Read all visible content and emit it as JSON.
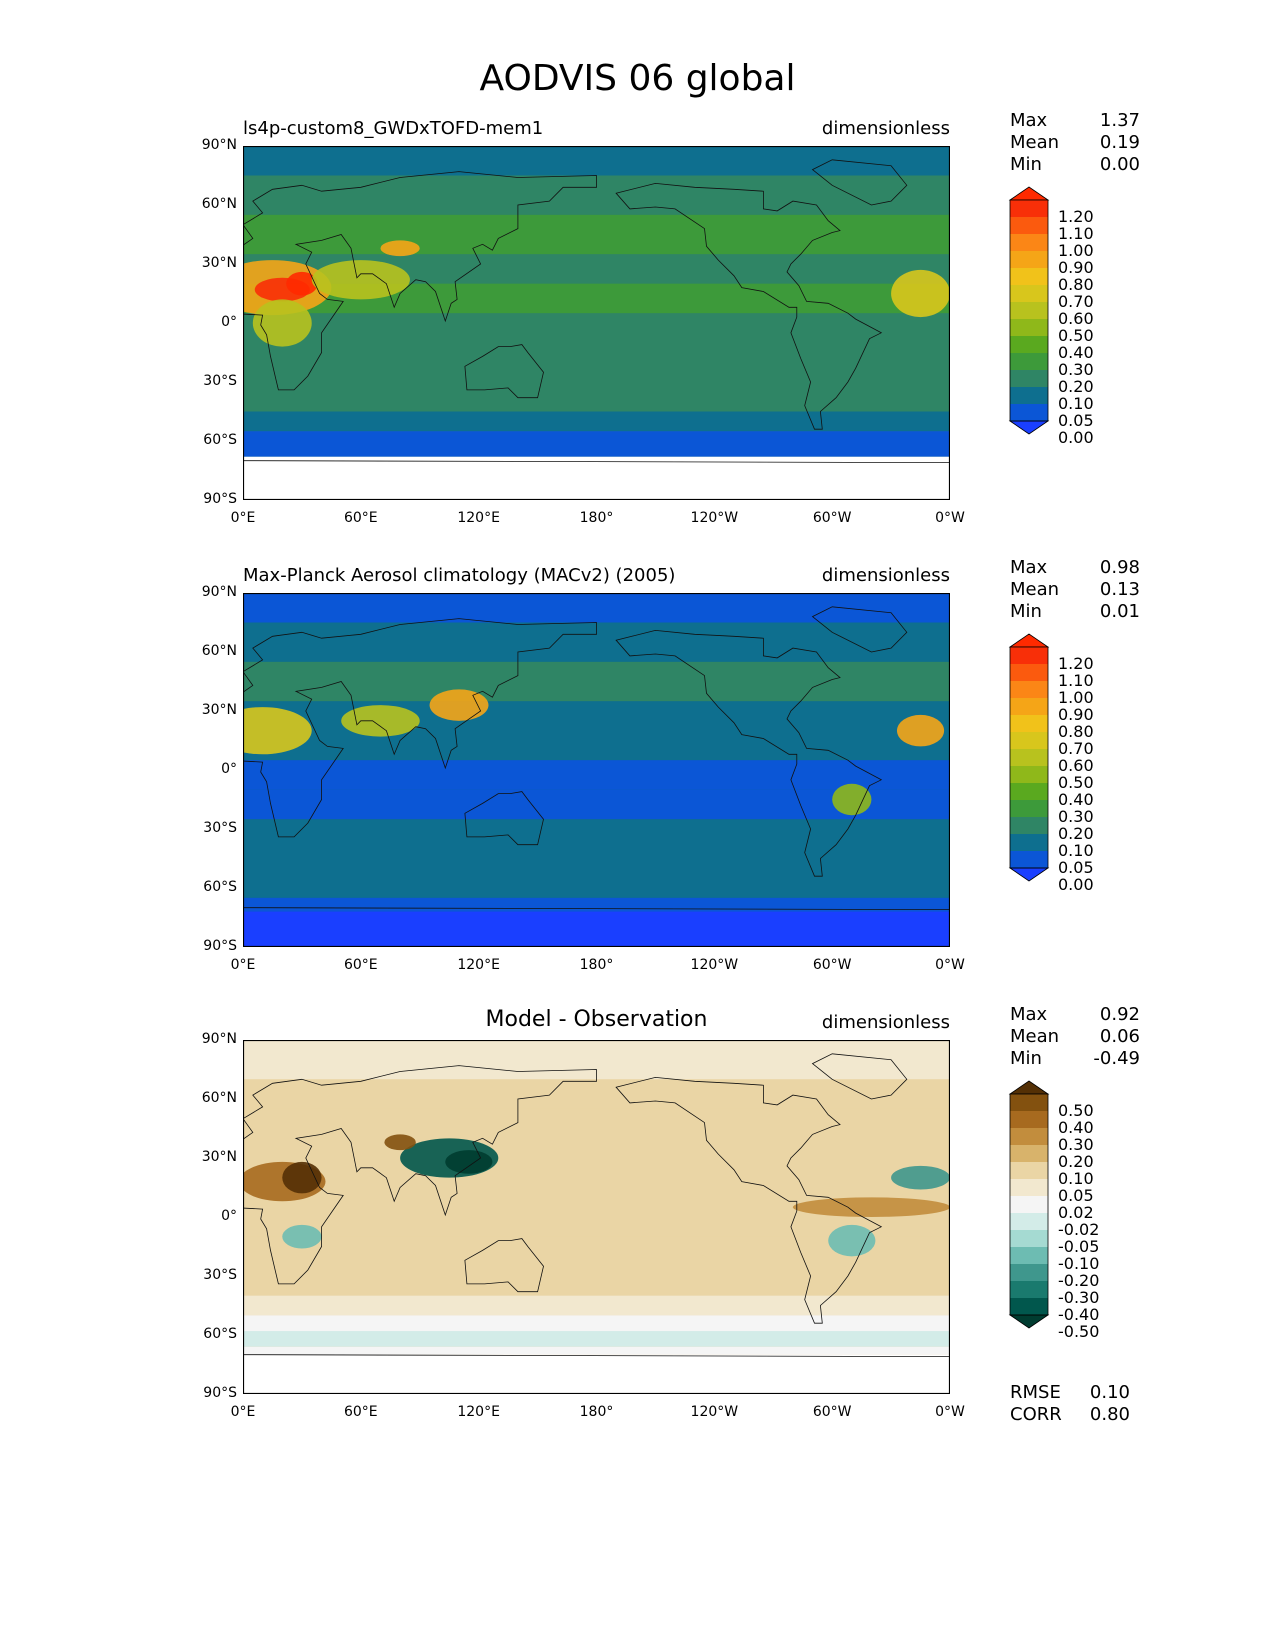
{
  "title": "AODVIS 06 global",
  "x_ticks": [
    "0°E",
    "60°E",
    "120°E",
    "180°",
    "120°W",
    "60°W",
    "0°W"
  ],
  "y_ticks": [
    "90°N",
    "60°N",
    "30°N",
    "0°",
    "30°S",
    "60°S",
    "90°S"
  ],
  "panels": [
    {
      "title_left": "ls4p-custom8_GWDxTOFD-mem1",
      "title_center": "",
      "units": "dimensionless",
      "stats": {
        "max_label": "Max",
        "max": "1.37",
        "mean_label": "Mean",
        "mean": "0.19",
        "min_label": "Min",
        "min": "0.00"
      },
      "colorbar": {
        "levels": [
          "0.00",
          "0.05",
          "0.10",
          "0.20",
          "0.30",
          "0.40",
          "0.50",
          "0.60",
          "0.70",
          "0.80",
          "0.90",
          "1.00",
          "1.10",
          "1.20"
        ],
        "colors": [
          "#1a3fff",
          "#0b56d6",
          "#0e6f8f",
          "#2f8565",
          "#3d9a3a",
          "#5aa91f",
          "#8fb81a",
          "#b8c21e",
          "#d8c61c",
          "#f1c21a",
          "#f5a517",
          "#fb8616",
          "#fb5a0e",
          "#f82f08",
          "#ff2a00"
        ]
      }
    },
    {
      "title_left": "Max-Planck Aerosol climatology (MACv2) (2005)",
      "title_center": "",
      "units": "dimensionless",
      "stats": {
        "max_label": "Max",
        "max": "0.98",
        "mean_label": "Mean",
        "mean": "0.13",
        "min_label": "Min",
        "min": "0.01"
      },
      "colorbar": {
        "levels": [
          "0.00",
          "0.05",
          "0.10",
          "0.20",
          "0.30",
          "0.40",
          "0.50",
          "0.60",
          "0.70",
          "0.80",
          "0.90",
          "1.00",
          "1.10",
          "1.20"
        ],
        "colors": [
          "#1a3fff",
          "#0b56d6",
          "#0e6f8f",
          "#2f8565",
          "#3d9a3a",
          "#5aa91f",
          "#8fb81a",
          "#b8c21e",
          "#d8c61c",
          "#f1c21a",
          "#f5a517",
          "#fb8616",
          "#fb5a0e",
          "#f82f08",
          "#ff2a00"
        ]
      }
    },
    {
      "title_left": "",
      "title_center": "Model - Observation",
      "units": "dimensionless",
      "stats": {
        "max_label": "Max",
        "max": "0.92",
        "mean_label": "Mean",
        "mean": "0.06",
        "min_label": "Min",
        "min": "-0.49"
      },
      "colorbar": {
        "levels": [
          "-0.50",
          "-0.40",
          "-0.30",
          "-0.20",
          "-0.10",
          "-0.05",
          "-0.02",
          "0.02",
          "0.05",
          "0.10",
          "0.20",
          "0.30",
          "0.40",
          "0.50"
        ],
        "colors": [
          "#003c30",
          "#01574d",
          "#1a7a6e",
          "#3f978d",
          "#6dbcb2",
          "#a5dad2",
          "#d3ece8",
          "#f5f5f5",
          "#f2e8cf",
          "#ead5a5",
          "#d8b36b",
          "#c28d3d",
          "#a76a1f",
          "#83510f",
          "#543005"
        ]
      },
      "metrics": {
        "rmse_label": "RMSE",
        "rmse": "0.10",
        "corr_label": "CORR",
        "corr": "0.80"
      }
    }
  ]
}
